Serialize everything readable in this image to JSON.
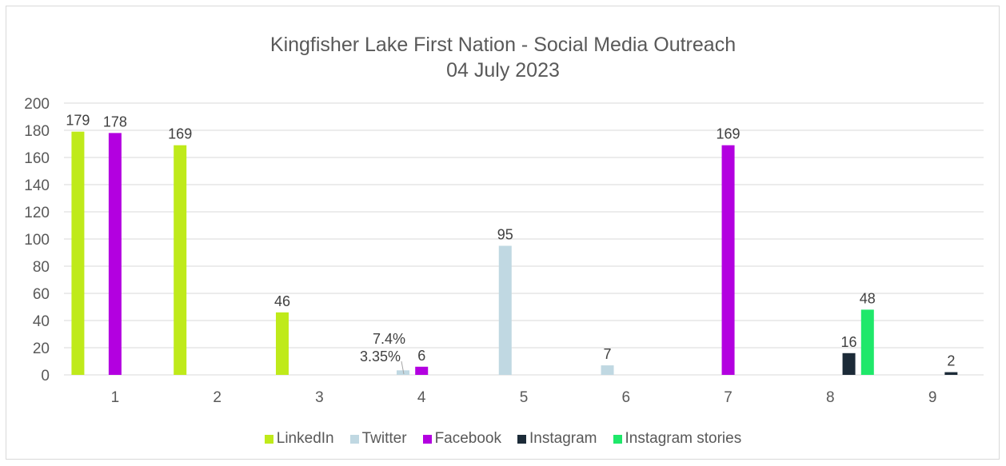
{
  "chart_data": {
    "type": "bar",
    "title": "Kingfisher Lake First Nation - Social Media Outreach",
    "subtitle": "04 July 2023",
    "categories": [
      "1",
      "2",
      "3",
      "4",
      "5",
      "6",
      "7",
      "8",
      "9"
    ],
    "ylim": [
      0,
      200
    ],
    "yticks": [
      0,
      20,
      40,
      60,
      80,
      100,
      120,
      140,
      160,
      180,
      200
    ],
    "grid": true,
    "legend_position": "bottom",
    "series": [
      {
        "name": "LinkedIn",
        "color": "#bfea1a",
        "values": [
          179,
          169,
          46,
          null,
          null,
          null,
          null,
          null,
          null
        ]
      },
      {
        "name": "Twitter",
        "color": "#c0d8e2",
        "values": [
          null,
          null,
          null,
          3.35,
          95,
          7,
          null,
          null,
          null
        ]
      },
      {
        "name": "Facebook",
        "color": "#b300e0",
        "values": [
          178,
          null,
          null,
          6,
          null,
          null,
          169,
          null,
          null
        ]
      },
      {
        "name": "Instagram",
        "color": "#1c2b38",
        "values": [
          null,
          null,
          null,
          null,
          null,
          null,
          null,
          16,
          2
        ]
      },
      {
        "name": "Instagram stories",
        "color": "#1fe86a",
        "values": [
          null,
          null,
          null,
          null,
          null,
          null,
          null,
          48,
          null
        ]
      }
    ],
    "annotations": [
      {
        "category": "4",
        "text": "7.4%"
      },
      {
        "category": "4",
        "text": "3.35%"
      }
    ]
  }
}
